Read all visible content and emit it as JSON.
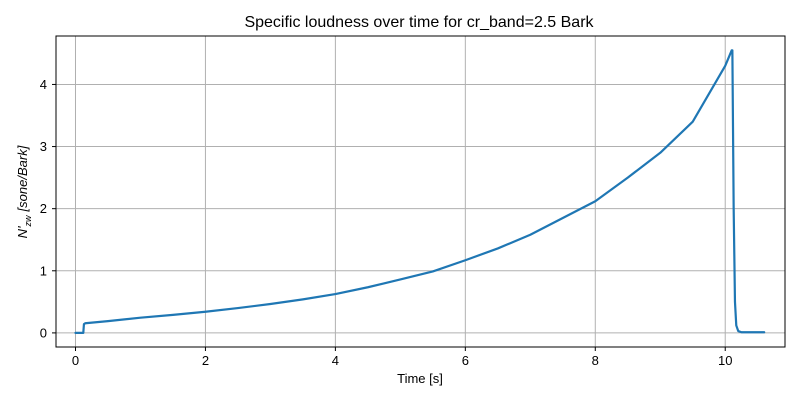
{
  "chart_data": {
    "type": "line",
    "title": "Specific loudness over time for cr_band=2.5 Bark",
    "xlabel": "Time [s]",
    "ylabel": {
      "main": "N'",
      "subscript": "zw",
      "unit": "[sone/Bark]"
    },
    "xlim": [
      -0.3,
      10.92
    ],
    "ylim": [
      -0.227,
      4.78
    ],
    "xticks": [
      0,
      2,
      4,
      6,
      8,
      10
    ],
    "yticks": [
      0,
      1,
      2,
      3,
      4
    ],
    "grid": true,
    "series": [
      {
        "color": "#1f77b4",
        "x": [
          0,
          0.12,
          0.13,
          0.15,
          0.5,
          1.0,
          1.5,
          2.0,
          2.5,
          3.0,
          3.5,
          4.0,
          4.5,
          5.0,
          5.5,
          6.0,
          6.5,
          7.0,
          7.5,
          8.0,
          8.5,
          9.0,
          9.5,
          10.0,
          10.1,
          10.11,
          10.13,
          10.15,
          10.17,
          10.2,
          10.25,
          10.3,
          10.6
        ],
        "y": [
          0,
          0,
          0.14,
          0.155,
          0.19,
          0.245,
          0.29,
          0.34,
          0.4,
          0.465,
          0.54,
          0.625,
          0.735,
          0.86,
          0.99,
          1.17,
          1.36,
          1.58,
          1.85,
          2.12,
          2.5,
          2.9,
          3.4,
          4.3,
          4.55,
          4.55,
          2.0,
          0.5,
          0.12,
          0.03,
          0.01,
          0.01,
          0.01
        ]
      }
    ]
  }
}
